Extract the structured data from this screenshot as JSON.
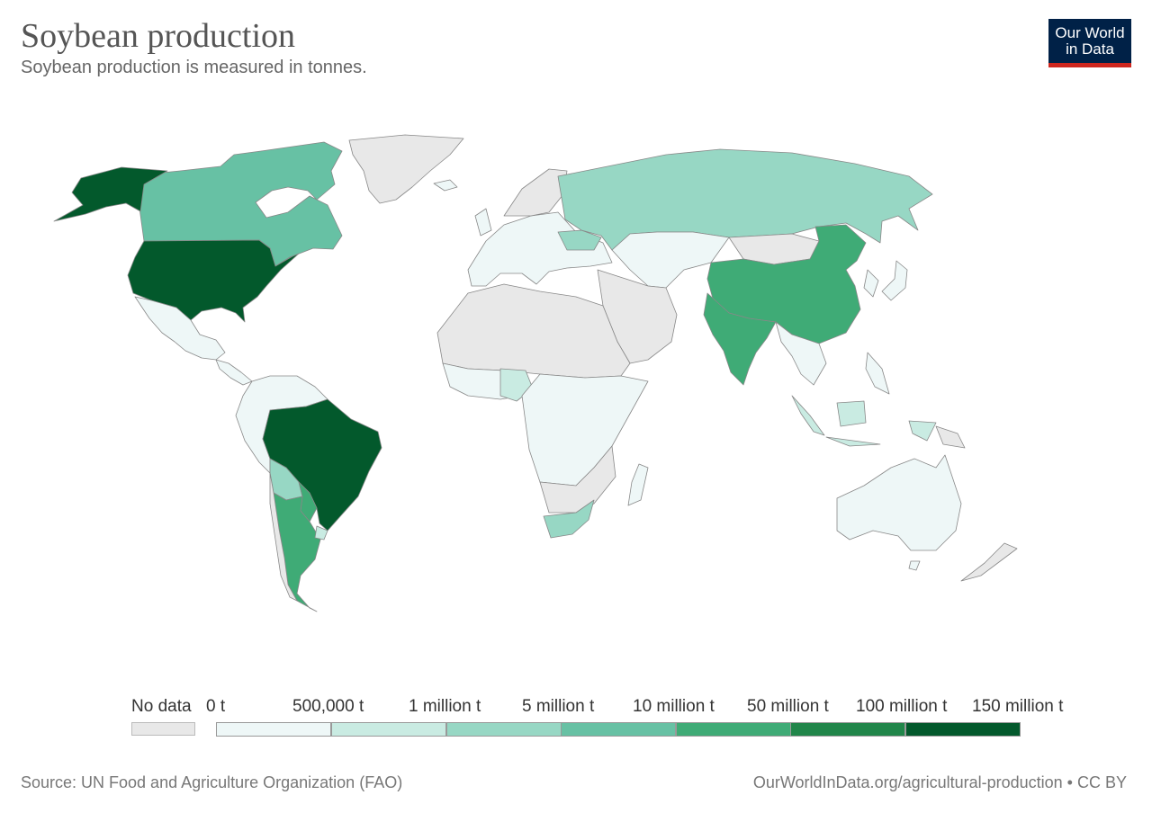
{
  "header": {
    "title": "Soybean production",
    "subtitle": "Soybean production is measured in tonnes."
  },
  "logo": {
    "line1": "Our World",
    "line2": "in Data"
  },
  "legend": {
    "nodata_label": "No data",
    "bins": [
      {
        "label": "0 t",
        "color": "#eef7f7"
      },
      {
        "label": "500,000 t",
        "color": "#c9ebe2"
      },
      {
        "label": "1 million t",
        "color": "#97d7c4"
      },
      {
        "label": "5 million t",
        "color": "#67c1a4"
      },
      {
        "label": "10 million t",
        "color": "#3fab76"
      },
      {
        "label": "50 million t",
        "color": "#21864a"
      },
      {
        "label": "100 million t",
        "color": "#03592c"
      }
    ],
    "max_label": "150 million t"
  },
  "footer": {
    "source": "Source: UN Food and Agriculture Organization (FAO)",
    "url": "OurWorldInData.org/agricultural-production • CC BY"
  },
  "colors": {
    "no_data": "#e8e8e8",
    "logo_bg": "#002147",
    "logo_accent": "#ce261e",
    "border": "#888888"
  }
}
